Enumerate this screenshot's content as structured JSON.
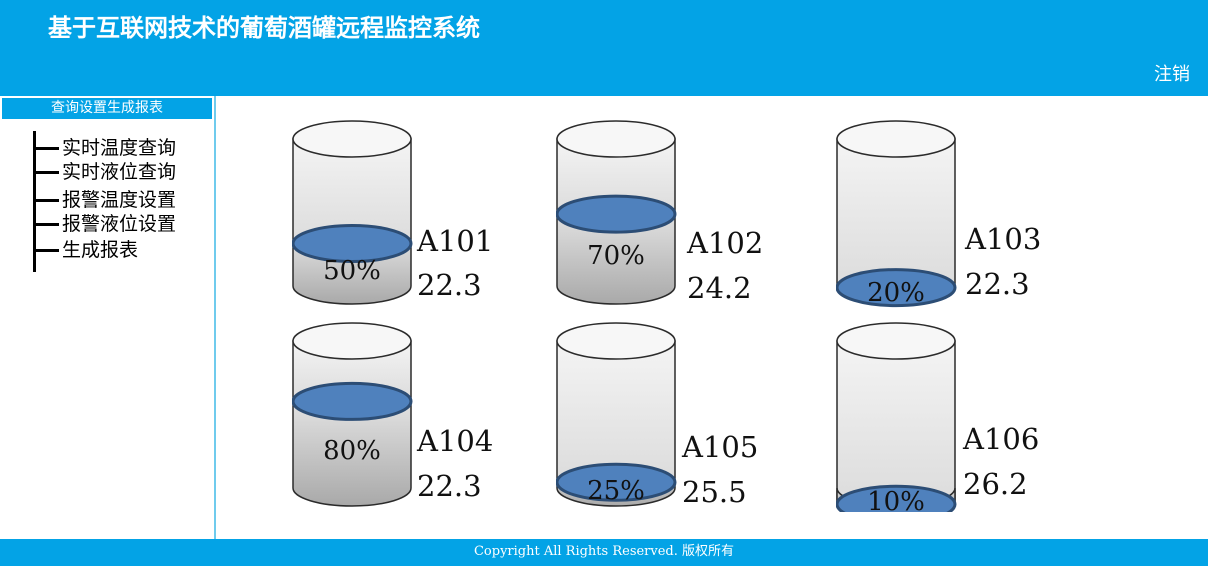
{
  "header": {
    "title": "基于互联网技术的葡萄酒罐远程监控系统",
    "logout_label": "注销"
  },
  "sidebar": {
    "header": "查询设置生成报表",
    "items": [
      {
        "label": "实时温度查询"
      },
      {
        "label": "实时液位查询"
      },
      {
        "label": "报警温度设置"
      },
      {
        "label": "报警液位设置"
      },
      {
        "label": "生成报表"
      }
    ]
  },
  "tanks": [
    {
      "id": "A101",
      "percent_label": "50%",
      "temperature": "22.3",
      "level": 0.5
    },
    {
      "id": "A102",
      "percent_label": "70%",
      "temperature": "24.2",
      "level": 0.7
    },
    {
      "id": "A103",
      "percent_label": "20%",
      "temperature": "22.3",
      "level": 0.2
    },
    {
      "id": "A104",
      "percent_label": "80%",
      "temperature": "22.3",
      "level": 0.8
    },
    {
      "id": "A105",
      "percent_label": "25%",
      "temperature": "25.5",
      "level": 0.25
    },
    {
      "id": "A106",
      "percent_label": "10%",
      "temperature": "26.2",
      "level": 0.1
    }
  ],
  "colors": {
    "brand": "#03a3e6",
    "liquid_fill": "#4f81bd",
    "liquid_edge": "#2c4d75"
  },
  "footer": {
    "text": "Copyright All Rights Reserved. 版权所有"
  }
}
